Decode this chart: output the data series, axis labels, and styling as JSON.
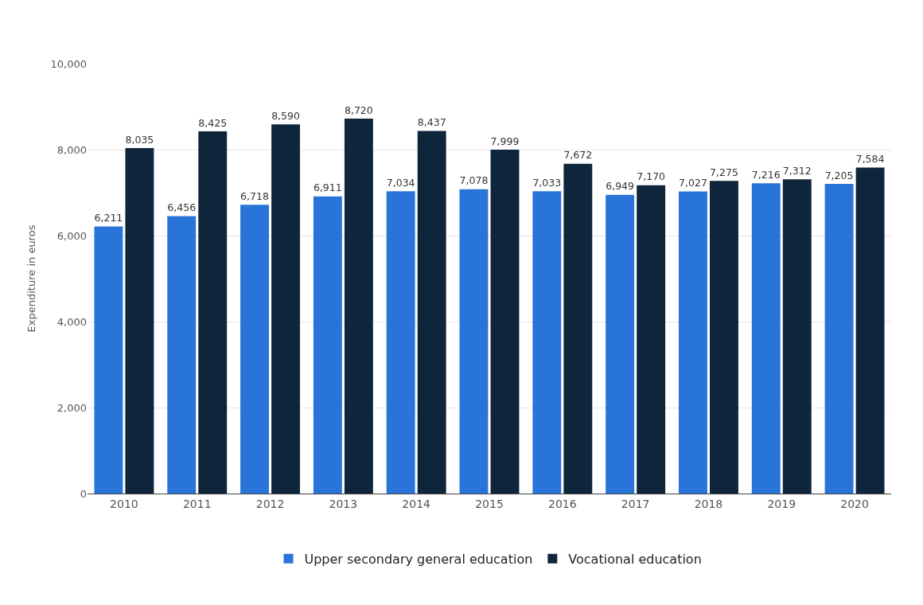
{
  "chart_data": {
    "type": "bar",
    "ylabel": "Expenditure in euros",
    "categories": [
      "2010",
      "2011",
      "2012",
      "2013",
      "2014",
      "2015",
      "2016",
      "2017",
      "2018",
      "2019",
      "2020"
    ],
    "series": [
      {
        "name": "Upper secondary general education",
        "color": "#2874d9",
        "values": [
          6211,
          6456,
          6718,
          6911,
          7034,
          7078,
          7033,
          6949,
          7027,
          7216,
          7205
        ],
        "value_labels": [
          "6,211",
          "6,456",
          "6,718",
          "6,911",
          "7,034",
          "7,078",
          "7,033",
          "6,949",
          "7,027",
          "7,216",
          "7,205"
        ]
      },
      {
        "name": "Vocational education",
        "color": "#0f253b",
        "values": [
          8035,
          8425,
          8590,
          8720,
          8437,
          7999,
          7672,
          7170,
          7275,
          7312,
          7584
        ],
        "value_labels": [
          "8,035",
          "8,425",
          "8,590",
          "8,720",
          "8,437",
          "7,999",
          "7,672",
          "7,170",
          "7,275",
          "7,312",
          "7,584"
        ]
      }
    ],
    "ylim": [
      0,
      10000
    ],
    "yticks": [
      {
        "value": 0,
        "label": "0"
      },
      {
        "value": 2000,
        "label": "2,000"
      },
      {
        "value": 4000,
        "label": "4,000"
      },
      {
        "value": 6000,
        "label": "6,000"
      },
      {
        "value": 8000,
        "label": "8,000"
      },
      {
        "value": 10000,
        "label": "10,000"
      }
    ],
    "grid": "y",
    "legend": "bottom"
  }
}
